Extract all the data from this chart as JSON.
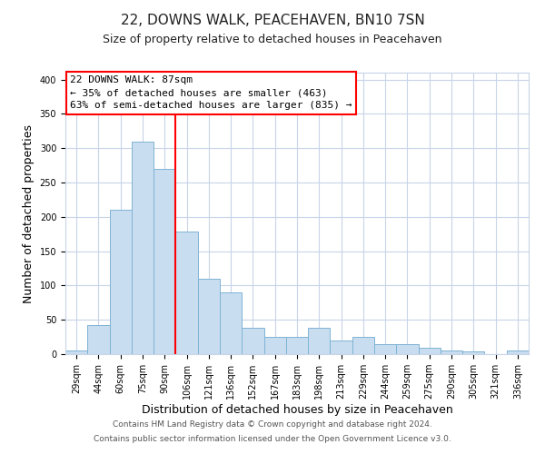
{
  "title": "22, DOWNS WALK, PEACEHAVEN, BN10 7SN",
  "subtitle": "Size of property relative to detached houses in Peacehaven",
  "xlabel": "Distribution of detached houses by size in Peacehaven",
  "ylabel": "Number of detached properties",
  "bin_labels": [
    "29sqm",
    "44sqm",
    "60sqm",
    "75sqm",
    "90sqm",
    "106sqm",
    "121sqm",
    "136sqm",
    "152sqm",
    "167sqm",
    "183sqm",
    "198sqm",
    "213sqm",
    "229sqm",
    "244sqm",
    "259sqm",
    "275sqm",
    "290sqm",
    "305sqm",
    "321sqm",
    "336sqm"
  ],
  "bar_values": [
    5,
    42,
    210,
    310,
    270,
    178,
    110,
    90,
    38,
    25,
    25,
    38,
    20,
    25,
    14,
    14,
    9,
    5,
    4,
    0,
    5
  ],
  "bar_color": "#c8ddf0",
  "bar_edge_color": "#7fb3d3",
  "bar_width": 1.0,
  "red_line_index": 4,
  "ylim": [
    0,
    410
  ],
  "yticks": [
    0,
    50,
    100,
    150,
    200,
    250,
    300,
    350,
    400
  ],
  "annotation_title": "22 DOWNS WALK: 87sqm",
  "annotation_line1": "← 35% of detached houses are smaller (463)",
  "annotation_line2": "63% of semi-detached houses are larger (835) →",
  "footer_line1": "Contains HM Land Registry data © Crown copyright and database right 2024.",
  "footer_line2": "Contains public sector information licensed under the Open Government Licence v3.0.",
  "bg_color": "#ffffff",
  "grid_color": "#c8d4e8",
  "title_fontsize": 11,
  "subtitle_fontsize": 9,
  "axis_label_fontsize": 9,
  "tick_fontsize": 7,
  "annotation_fontsize": 8,
  "footer_fontsize": 6.5
}
